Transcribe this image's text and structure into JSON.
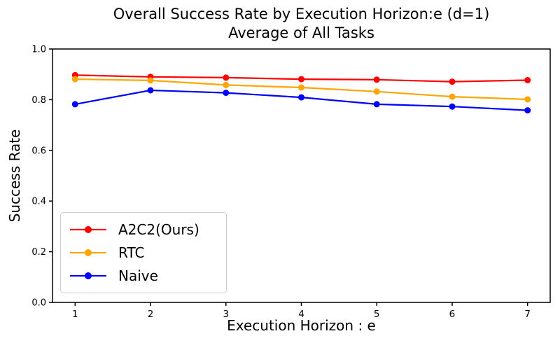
{
  "figure": {
    "background": "#ffffff",
    "axis_color": "#000000",
    "tick_label_color": "#000000"
  },
  "chart_data": {
    "type": "line",
    "title": "Overall Success Rate by Execution Horizon:e (d=1)",
    "subtitle": "Average of All Tasks",
    "xlabel": "Execution Horizon : e",
    "ylabel": "Success Rate",
    "x": [
      1,
      2,
      3,
      4,
      5,
      6,
      7
    ],
    "xticks": [
      "1",
      "2",
      "3",
      "4",
      "5",
      "6",
      "7"
    ],
    "yticks": [
      "0.0",
      "0.2",
      "0.4",
      "0.6",
      "0.8",
      "1.0"
    ],
    "xlim": [
      0.7,
      7.3
    ],
    "ylim": [
      0.0,
      1.0
    ],
    "grid": false,
    "marker": "circle",
    "legend": {
      "position": "lower-left",
      "border_color": "#cccccc",
      "background": "#ffffff"
    },
    "series": [
      {
        "name": "A2C2(Ours)",
        "color": "#ff0000",
        "values": [
          0.897,
          0.89,
          0.887,
          0.881,
          0.879,
          0.871,
          0.877
        ]
      },
      {
        "name": "RTC",
        "color": "#ffa500",
        "values": [
          0.881,
          0.876,
          0.858,
          0.848,
          0.832,
          0.812,
          0.801
        ]
      },
      {
        "name": "Naive",
        "color": "#0000ff",
        "values": [
          0.782,
          0.837,
          0.827,
          0.809,
          0.782,
          0.773,
          0.758
        ]
      }
    ]
  }
}
